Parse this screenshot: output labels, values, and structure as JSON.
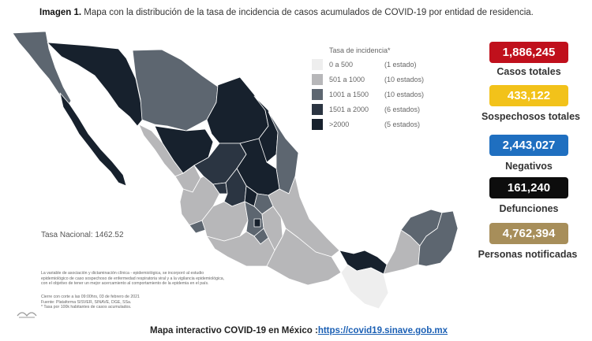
{
  "header": {
    "title_bold": "Imagen 1.",
    "title_rest": " Mapa con la distribución de la tasa de incidencia de casos acumulados de COVID-19 por entidad de residencia."
  },
  "legend": {
    "title": "Tasa de incidencia*",
    "items": [
      {
        "range": "0 a   500",
        "count": "(1 estado)",
        "color": "#eeeeee"
      },
      {
        "range": "501 a  1000",
        "count": "(10 estados)",
        "color": "#b7b7b9"
      },
      {
        "range": "1001 a  1500",
        "count": "(10 estados)",
        "color": "#5d6670"
      },
      {
        "range": "1501 a  2000",
        "count": "(6 estados)",
        "color": "#2b3542"
      },
      {
        "range": ">2000",
        "count": "(5 estados)",
        "color": "#17212d"
      }
    ]
  },
  "tasa_nacional": "Tasa Nacional:  1462.52",
  "note_lines": [
    "La variable de asociación y dictaminación clínica - epidemiológica, se incorporó al estudio",
    "epidemiológico de caso sospechoso de enfermedad respiratoria viral y a la vigilancia epidemiológica,",
    "con el objetivo de tener un mejor acercamiento al comportamiento de la epidemia en el país."
  ],
  "footer_lines": [
    "Cierre con corte a las 09:00hrs, 03 de febrero de 2021",
    "Fuente: Plataforma SISVER, SINAVE, DGE, SSa.",
    "* Tasa por 100k habitantes de casos acumulados."
  ],
  "stats": [
    {
      "value": "1,886,245",
      "label": "Casos totales",
      "color": "#c0101c"
    },
    {
      "value": "433,122",
      "label": "Sospechosos totales",
      "color": "#f2c21a"
    },
    {
      "value": "2,443,027",
      "label": "Negativos",
      "color": "#1f6fc0"
    },
    {
      "value": "161,240",
      "label": "Defunciones",
      "color": "#0d0d0d"
    },
    {
      "value": "4,762,394",
      "label": "Personas notificadas",
      "color": "#a78e5a"
    }
  ],
  "footer": {
    "text": "Mapa interactivo COVID-19 en México :",
    "link": "https://covid19.sinave.gob.mx"
  }
}
